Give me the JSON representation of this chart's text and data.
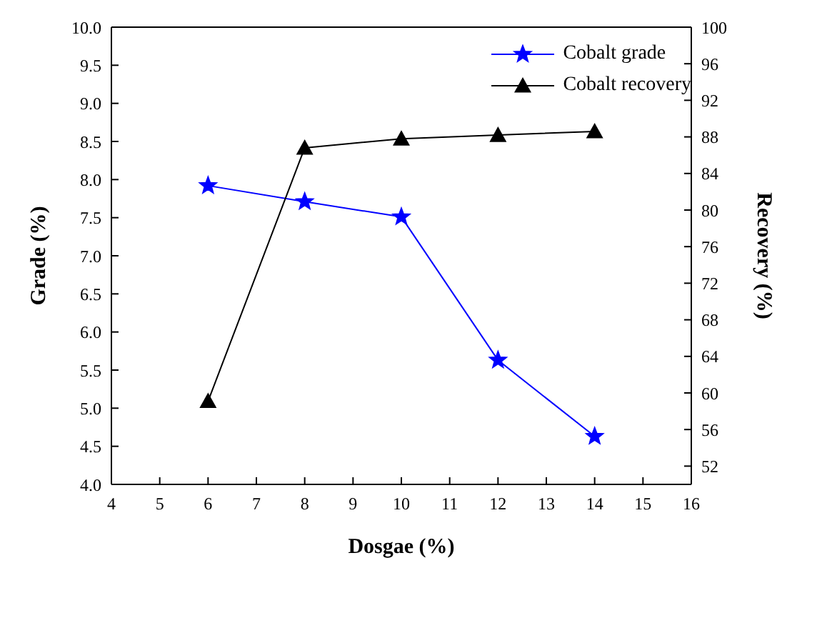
{
  "chart_data": {
    "type": "line",
    "xlabel": "Dosgae (%)",
    "ylabel": "Grade (%)",
    "y2label": "Recovery (%)",
    "x": [
      6,
      8,
      10,
      12,
      14
    ],
    "series": [
      {
        "name": "Cobalt grade",
        "color": "#0000ff",
        "values": [
          7.92,
          7.71,
          7.51,
          5.63,
          4.63
        ],
        "marker": "star"
      },
      {
        "name": "Cobalt recovery",
        "color": "#000000",
        "values": [
          59.1,
          86.8,
          87.8,
          88.2,
          88.6
        ],
        "marker": "triangle",
        "axis": "y2"
      }
    ],
    "xlim": [
      4,
      16
    ],
    "xticks": [
      4,
      5,
      6,
      7,
      8,
      9,
      10,
      11,
      12,
      13,
      14,
      15,
      16
    ],
    "ylim": [
      4,
      10
    ],
    "yticks": [
      {
        "value": 4,
        "label": "4.0"
      },
      4.5,
      {
        "value": 5,
        "label": "5.0"
      },
      5.5,
      {
        "value": 6,
        "label": "6.0"
      },
      6.5,
      {
        "value": 7,
        "label": "7.0"
      },
      7.5,
      {
        "value": 8,
        "label": "8.0"
      },
      8.5,
      {
        "value": 9,
        "label": "9.0"
      },
      9.5,
      {
        "value": 10,
        "label": "10.0"
      }
    ],
    "y2lim": [
      50,
      100
    ],
    "y2ticks": [
      52,
      56,
      60,
      64,
      68,
      72,
      76,
      80,
      84,
      88,
      92,
      96,
      100
    ],
    "legend": "top right",
    "grid": false,
    "line_style": "solid"
  }
}
